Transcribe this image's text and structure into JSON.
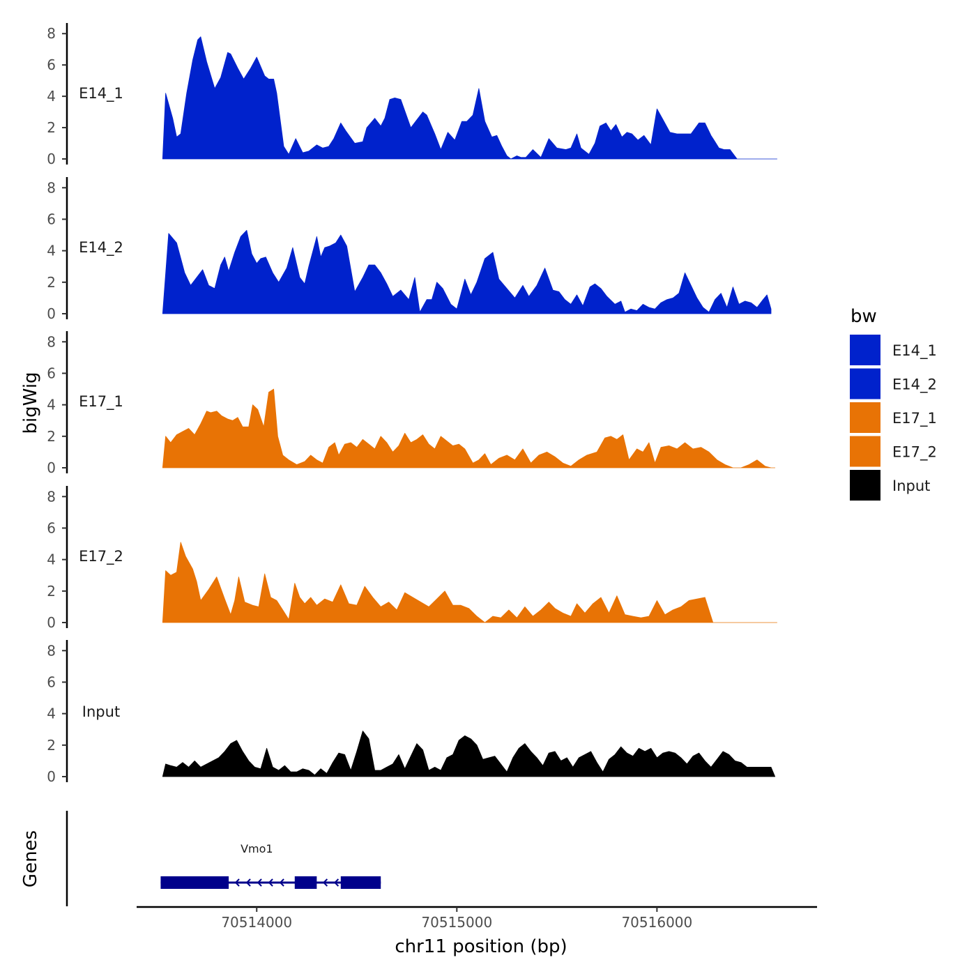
{
  "chart_data": {
    "type": "area",
    "ylabel": "bigWig",
    "xlabel": "chr11 position (bp)",
    "x_ticks": [
      70514000,
      70515000,
      70516000
    ],
    "x_tick_labels": [
      "70514000",
      "70515000",
      "70516000"
    ],
    "xlim": [
      70513400,
      70516800
    ],
    "ylim": [
      0,
      8.5
    ],
    "y_ticks": [
      0,
      2,
      4,
      6,
      8
    ],
    "y_tick_labels": [
      "0",
      "2",
      "4",
      "6",
      "8"
    ],
    "legend": {
      "title": "bw",
      "position": "right",
      "entries": [
        {
          "label": "E14_1",
          "color": "#0022CC"
        },
        {
          "label": "E14_2",
          "color": "#0022CC"
        },
        {
          "label": "E17_1",
          "color": "#E87305"
        },
        {
          "label": "E17_2",
          "color": "#E87305"
        },
        {
          "label": "Input",
          "color": "#000000"
        }
      ]
    },
    "series": [
      {
        "name": "E14_1",
        "color": "#0022CC",
        "x": [
          70513530,
          70513545,
          70513580,
          70513600,
          70513620,
          70513650,
          70513680,
          70513705,
          70513720,
          70513750,
          70513790,
          70513820,
          70513855,
          70513870,
          70513905,
          70513935,
          70513970,
          70514000,
          70514040,
          70514060,
          70514085,
          70514100,
          70514135,
          70514160,
          70514195,
          70514230,
          70514260,
          70514300,
          70514330,
          70514360,
          70514385,
          70514420,
          70514445,
          70514490,
          70514530,
          70514550,
          70514590,
          70514620,
          70514640,
          70514665,
          70514690,
          70514720,
          70514770,
          70514830,
          70514850,
          70514890,
          70514920,
          70514955,
          70514990,
          70515025,
          70515050,
          70515080,
          70515110,
          70515140,
          70515175,
          70515200,
          70515225,
          70515250,
          70515270,
          70515300,
          70515320,
          70515345,
          70515380,
          70515420,
          70515460,
          70515500,
          70515545,
          70515570,
          70515600,
          70515620,
          70515660,
          70515690,
          70515715,
          70515745,
          70515770,
          70515795,
          70515825,
          70515850,
          70515875,
          70515905,
          70515935,
          70515970,
          70516000,
          70516035,
          70516065,
          70516100,
          70516130,
          70516170,
          70516210,
          70516240,
          70516270,
          70516285,
          70516310,
          70516335,
          70516365,
          70516400,
          70516435,
          70516470,
          70516500,
          70516525,
          70516550,
          70516570,
          70516600
        ],
        "y": [
          0,
          4.2,
          2.6,
          1.4,
          1.6,
          4.2,
          6.3,
          7.6,
          7.8,
          6.2,
          4.5,
          5.2,
          6.8,
          6.7,
          5.8,
          5.1,
          5.8,
          6.5,
          5.3,
          5.1,
          5.1,
          4.2,
          0.8,
          0.3,
          1.3,
          0.4,
          0.5,
          0.9,
          0.7,
          0.8,
          1.3,
          2.3,
          1.8,
          1.0,
          1.1,
          2.0,
          2.6,
          2.1,
          2.6,
          3.8,
          3.9,
          3.8,
          2.0,
          3.0,
          2.8,
          1.6,
          0.6,
          1.7,
          1.2,
          2.4,
          2.4,
          2.8,
          4.5,
          2.4,
          1.4,
          1.5,
          0.8,
          0.2,
          0,
          0.2,
          0.1,
          0.1,
          0.6,
          0.1,
          1.3,
          0.7,
          0.6,
          0.7,
          1.6,
          0.7,
          0.3,
          1.0,
          2.1,
          2.3,
          1.8,
          2.2,
          1.4,
          1.7,
          1.6,
          1.2,
          1.5,
          0.9,
          3.2,
          2.4,
          1.7,
          1.6,
          1.6,
          1.6,
          2.3,
          2.3,
          1.5,
          1.2,
          0.7,
          0.6,
          0.6,
          0,
          0,
          0,
          0,
          0,
          0,
          0,
          0
        ]
      },
      {
        "name": "E14_2",
        "color": "#0022CC",
        "x": [
          70513530,
          70513560,
          70513600,
          70513640,
          70513670,
          70513700,
          70513730,
          70513760,
          70513790,
          70513820,
          70513840,
          70513860,
          70513890,
          70513920,
          70513950,
          70513975,
          70514000,
          70514020,
          70514045,
          70514080,
          70514110,
          70514150,
          70514180,
          70514215,
          70514240,
          70514260,
          70514300,
          70514320,
          70514340,
          70514365,
          70514395,
          70514420,
          70514450,
          70514490,
          70514530,
          70514560,
          70514590,
          70514620,
          70514650,
          70514680,
          70514720,
          70514760,
          70514790,
          70514815,
          70514850,
          70514875,
          70514900,
          70514930,
          70514970,
          70515000,
          70515040,
          70515070,
          70515100,
          70515140,
          70515180,
          70515210,
          70515250,
          70515290,
          70515330,
          70515360,
          70515400,
          70515440,
          70515480,
          70515510,
          70515540,
          70515570,
          70515600,
          70515630,
          70515665,
          70515690,
          70515720,
          70515750,
          70515790,
          70515820,
          70515840,
          70515870,
          70515900,
          70515930,
          70515960,
          70515990,
          70516020,
          70516050,
          70516080,
          70516110,
          70516140,
          70516170,
          70516200,
          70516230,
          70516260,
          70516290,
          70516320,
          70516350,
          70516380,
          70516410,
          70516440,
          70516470,
          70516500,
          70516530,
          70516550,
          70516570
        ],
        "y": [
          0,
          5.1,
          4.5,
          2.6,
          1.8,
          2.3,
          2.8,
          1.8,
          1.6,
          3.1,
          3.6,
          2.7,
          3.9,
          4.9,
          5.3,
          3.8,
          3.2,
          3.5,
          3.6,
          2.6,
          2.0,
          2.9,
          4.2,
          2.3,
          1.9,
          3.0,
          4.9,
          3.6,
          4.2,
          4.3,
          4.5,
          5.0,
          4.3,
          1.4,
          2.3,
          3.1,
          3.1,
          2.6,
          1.9,
          1.1,
          1.5,
          0.9,
          2.3,
          0.1,
          0.9,
          0.9,
          2.0,
          1.6,
          0.6,
          0.3,
          2.2,
          1.2,
          2.0,
          3.5,
          3.9,
          2.2,
          1.6,
          1.0,
          1.8,
          1.1,
          1.8,
          2.9,
          1.5,
          1.4,
          0.9,
          0.6,
          1.2,
          0.5,
          1.7,
          1.9,
          1.6,
          1.1,
          0.6,
          0.8,
          0.1,
          0.3,
          0.2,
          0.6,
          0.4,
          0.3,
          0.7,
          0.9,
          1.0,
          1.3,
          2.6,
          1.8,
          1.0,
          0.4,
          0.1,
          0.9,
          1.3,
          0.4,
          1.7,
          0.6,
          0.8,
          0.7,
          0.4,
          0.9,
          1.2,
          0.3
        ],
        "gap_after_index": 99
      },
      {
        "name": "E17_1",
        "color": "#E87305",
        "x": [
          70513530,
          70513545,
          70513570,
          70513600,
          70513630,
          70513660,
          70513690,
          70513720,
          70513750,
          70513770,
          70513800,
          70513825,
          70513855,
          70513880,
          70513905,
          70513930,
          70513960,
          70513980,
          70514005,
          70514035,
          70514060,
          70514085,
          70514105,
          70514130,
          70514160,
          70514200,
          70514240,
          70514270,
          70514300,
          70514330,
          70514360,
          70514390,
          70514410,
          70514440,
          70514470,
          70514500,
          70514530,
          70514560,
          70514590,
          70514620,
          70514650,
          70514680,
          70514710,
          70514740,
          70514770,
          70514800,
          70514830,
          70514860,
          70514890,
          70514920,
          70514950,
          70514980,
          70515010,
          70515040,
          70515080,
          70515110,
          70515140,
          70515170,
          70515210,
          70515250,
          70515290,
          70515330,
          70515370,
          70515410,
          70515450,
          70515490,
          70515530,
          70515570,
          70515610,
          70515650,
          70515700,
          70515740,
          70515770,
          70515800,
          70515830,
          70515860,
          70515900,
          70515930,
          70515960,
          70515990,
          70516020,
          70516060,
          70516100,
          70516140,
          70516180,
          70516220,
          70516260,
          70516300,
          70516340,
          70516380,
          70516420,
          70516460,
          70516500,
          70516540,
          70516570,
          70516590
        ],
        "y": [
          0,
          2.0,
          1.6,
          2.1,
          2.3,
          2.5,
          2.1,
          2.8,
          3.6,
          3.5,
          3.6,
          3.3,
          3.1,
          3.0,
          3.2,
          2.6,
          2.6,
          4.0,
          3.7,
          2.6,
          4.8,
          5.0,
          2.0,
          0.8,
          0.5,
          0.2,
          0.4,
          0.8,
          0.5,
          0.3,
          1.3,
          1.6,
          0.8,
          1.5,
          1.6,
          1.3,
          1.8,
          1.5,
          1.2,
          2.0,
          1.6,
          1.0,
          1.4,
          2.2,
          1.6,
          1.8,
          2.1,
          1.5,
          1.2,
          2.0,
          1.7,
          1.4,
          1.5,
          1.2,
          0.3,
          0.5,
          0.9,
          0.2,
          0.6,
          0.8,
          0.5,
          1.2,
          0.3,
          0.8,
          1.0,
          0.7,
          0.3,
          0.1,
          0.5,
          0.8,
          1.0,
          1.9,
          2.0,
          1.8,
          2.1,
          0.5,
          1.2,
          1.0,
          1.6,
          0.3,
          1.3,
          1.4,
          1.2,
          1.6,
          1.2,
          1.3,
          1.0,
          0.5,
          0.2,
          0,
          0,
          0.2,
          0.5,
          0.1,
          0,
          0
        ],
        "truncate_right": true
      },
      {
        "name": "E17_2",
        "color": "#E87305",
        "x": [
          70513530,
          70513545,
          70513570,
          70513600,
          70513620,
          70513645,
          70513680,
          70513700,
          70513720,
          70513760,
          70513800,
          70513840,
          70513870,
          70513890,
          70513910,
          70513940,
          70513980,
          70514010,
          70514040,
          70514070,
          70514100,
          70514130,
          70514160,
          70514190,
          70514215,
          70514240,
          70514270,
          70514300,
          70514340,
          70514380,
          70514420,
          70514460,
          70514500,
          70514540,
          70514580,
          70514620,
          70514660,
          70514700,
          70514740,
          70514780,
          70514820,
          70514860,
          70514900,
          70514940,
          70514980,
          70515020,
          70515060,
          70515100,
          70515140,
          70515180,
          70515220,
          70515260,
          70515300,
          70515340,
          70515380,
          70515420,
          70515460,
          70515490,
          70515530,
          70515570,
          70515600,
          70515640,
          70515680,
          70515720,
          70515760,
          70515800,
          70515840,
          70515880,
          70515920,
          70515960,
          70516000,
          70516040,
          70516080,
          70516120,
          70516160,
          70516200,
          70516240,
          70516280,
          70516320,
          70516340,
          70516360,
          70516400,
          70516440,
          70516480,
          70516520,
          70516560,
          70516600
        ],
        "y": [
          0,
          3.3,
          3.0,
          3.2,
          5.1,
          4.2,
          3.4,
          2.6,
          1.4,
          2.1,
          2.9,
          1.5,
          0.5,
          1.4,
          2.9,
          1.3,
          1.1,
          1.0,
          3.1,
          1.6,
          1.4,
          0.8,
          0.2,
          2.5,
          1.6,
          1.2,
          1.6,
          1.1,
          1.5,
          1.3,
          2.4,
          1.2,
          1.1,
          2.3,
          1.6,
          1.0,
          1.3,
          0.8,
          1.9,
          1.6,
          1.3,
          1.0,
          1.5,
          2.0,
          1.1,
          1.1,
          0.9,
          0.4,
          0,
          0.4,
          0.3,
          0.8,
          0.3,
          1.0,
          0.4,
          0.8,
          1.3,
          0.9,
          0.6,
          0.4,
          1.2,
          0.6,
          1.2,
          1.6,
          0.6,
          1.7,
          0.5,
          0.4,
          0.3,
          0.4,
          1.4,
          0.5,
          0.8,
          1.0,
          1.4,
          1.5,
          1.6,
          0,
          0,
          0,
          0,
          0,
          0,
          0,
          0,
          0,
          0
        ],
        "truncate_right": false
      },
      {
        "name": "Input",
        "color": "#000000",
        "x": [
          70513530,
          70513545,
          70513570,
          70513600,
          70513630,
          70513660,
          70513690,
          70513720,
          70513750,
          70513780,
          70513810,
          70513840,
          70513870,
          70513900,
          70513930,
          70513960,
          70513990,
          70514020,
          70514050,
          70514080,
          70514110,
          70514140,
          70514170,
          70514200,
          70514230,
          70514260,
          70514290,
          70514320,
          70514350,
          70514380,
          70514410,
          70514440,
          70514470,
          70514500,
          70514530,
          70514560,
          70514590,
          70514620,
          70514650,
          70514680,
          70514710,
          70514740,
          70514770,
          70514800,
          70514830,
          70514860,
          70514890,
          70514920,
          70514950,
          70514980,
          70515010,
          70515040,
          70515070,
          70515100,
          70515130,
          70515160,
          70515190,
          70515220,
          70515250,
          70515280,
          70515310,
          70515340,
          70515370,
          70515400,
          70515430,
          70515460,
          70515490,
          70515520,
          70515550,
          70515580,
          70515610,
          70515640,
          70515670,
          70515700,
          70515730,
          70515760,
          70515790,
          70515820,
          70515850,
          70515880,
          70515910,
          70515940,
          70515970,
          70516000,
          70516030,
          70516060,
          70516090,
          70516120,
          70516150,
          70516180,
          70516210,
          70516240,
          70516270,
          70516300,
          70516330,
          70516360,
          70516390,
          70516420,
          70516450,
          70516480,
          70516510,
          70516540,
          70516570,
          70516590
        ],
        "y": [
          0,
          0.8,
          0.7,
          0.6,
          0.9,
          0.6,
          1.0,
          0.6,
          0.8,
          1.0,
          1.2,
          1.6,
          2.1,
          2.3,
          1.6,
          1.0,
          0.6,
          0.5,
          1.8,
          0.6,
          0.4,
          0.7,
          0.3,
          0.3,
          0.5,
          0.4,
          0.1,
          0.5,
          0.2,
          0.9,
          1.5,
          1.4,
          0.4,
          1.6,
          2.9,
          2.4,
          0.4,
          0.4,
          0.6,
          0.8,
          1.4,
          0.5,
          1.3,
          2.1,
          1.7,
          0.4,
          0.6,
          0.4,
          1.2,
          1.4,
          2.3,
          2.6,
          2.4,
          2.0,
          1.1,
          1.2,
          1.3,
          0.8,
          0.3,
          1.2,
          1.8,
          2.1,
          1.6,
          1.2,
          0.7,
          1.5,
          1.6,
          1.0,
          1.2,
          0.6,
          1.2,
          1.4,
          1.6,
          0.9,
          0.3,
          1.1,
          1.4,
          1.9,
          1.5,
          1.3,
          1.8,
          1.6,
          1.8,
          1.2,
          1.5,
          1.6,
          1.5,
          1.2,
          0.8,
          1.3,
          1.5,
          1.0,
          0.6,
          1.1,
          1.6,
          1.4,
          1.0,
          0.9,
          0.6,
          0.6,
          0.6,
          0.6,
          0.6,
          0
        ]
      }
    ],
    "genes": {
      "label": "Genes",
      "items": [
        {
          "name": "Vmo1",
          "strand": "-",
          "start": 70513520,
          "end": 70514620,
          "color": "#00008B",
          "exons": [
            [
              70513520,
              70513860
            ],
            [
              70514190,
              70514300
            ],
            [
              70514420,
              70514620
            ]
          ]
        }
      ]
    }
  }
}
